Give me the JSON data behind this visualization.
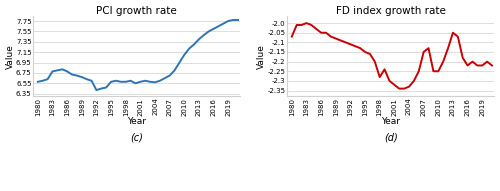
{
  "pci_years": [
    1980,
    1981,
    1982,
    1983,
    1984,
    1985,
    1986,
    1987,
    1988,
    1989,
    1990,
    1991,
    1992,
    1993,
    1994,
    1995,
    1996,
    1997,
    1998,
    1999,
    2000,
    2001,
    2002,
    2003,
    2004,
    2005,
    2006,
    2007,
    2008,
    2009,
    2010,
    2011,
    2012,
    2013,
    2014,
    2015,
    2016,
    2017,
    2018,
    2019,
    2020,
    2021
  ],
  "pci_values": [
    6.58,
    6.6,
    6.63,
    6.78,
    6.8,
    6.82,
    6.78,
    6.72,
    6.7,
    6.67,
    6.63,
    6.6,
    6.42,
    6.45,
    6.47,
    6.58,
    6.6,
    6.58,
    6.58,
    6.6,
    6.55,
    6.58,
    6.6,
    6.58,
    6.57,
    6.6,
    6.65,
    6.7,
    6.8,
    6.95,
    7.1,
    7.22,
    7.3,
    7.4,
    7.48,
    7.55,
    7.6,
    7.65,
    7.7,
    7.75,
    7.77,
    7.77
  ],
  "fd_years": [
    1980,
    1981,
    1982,
    1983,
    1984,
    1985,
    1986,
    1987,
    1988,
    1989,
    1990,
    1991,
    1992,
    1993,
    1994,
    1995,
    1996,
    1997,
    1998,
    1999,
    2000,
    2001,
    2002,
    2003,
    2004,
    2005,
    2006,
    2007,
    2008,
    2009,
    2010,
    2011,
    2012,
    2013,
    2014,
    2015,
    2016,
    2017,
    2018,
    2019,
    2020,
    2021
  ],
  "fd_values": [
    -2.07,
    -2.01,
    -2.01,
    -2.0,
    -2.01,
    -2.03,
    -2.05,
    -2.05,
    -2.07,
    -2.08,
    -2.09,
    -2.1,
    -2.11,
    -2.12,
    -2.13,
    -2.15,
    -2.16,
    -2.2,
    -2.28,
    -2.24,
    -2.3,
    -2.32,
    -2.34,
    -2.34,
    -2.33,
    -2.3,
    -2.25,
    -2.15,
    -2.13,
    -2.25,
    -2.25,
    -2.2,
    -2.13,
    -2.05,
    -2.07,
    -2.18,
    -2.22,
    -2.2,
    -2.22,
    -2.22,
    -2.2,
    -2.22
  ],
  "pci_title": "PCI growth rate",
  "fd_title": "FD index growth rate",
  "pci_ylabel": "Value",
  "fd_ylabel": "Value",
  "xlabel": "Year",
  "pci_label_c": "(c)",
  "fd_label_d": "(d)",
  "pci_yticks": [
    6.35,
    6.55,
    6.75,
    6.95,
    7.15,
    7.35,
    7.55,
    7.75
  ],
  "fd_yticks": [
    -2.35,
    -2.3,
    -2.25,
    -2.2,
    -2.15,
    -2.1,
    -2.05,
    -2.0
  ],
  "xtick_years": [
    1980,
    1983,
    1986,
    1989,
    1992,
    1995,
    1998,
    2001,
    2004,
    2007,
    2010,
    2013,
    2016,
    2019
  ],
  "pci_color": "#2E75B6",
  "fd_color": "#CC0000",
  "bg_color": "#FFFFFF",
  "title_fontsize": 7.5,
  "axis_label_fontsize": 6.5,
  "tick_fontsize": 5.0,
  "sublabel_fontsize": 7.0,
  "linewidth": 1.4
}
